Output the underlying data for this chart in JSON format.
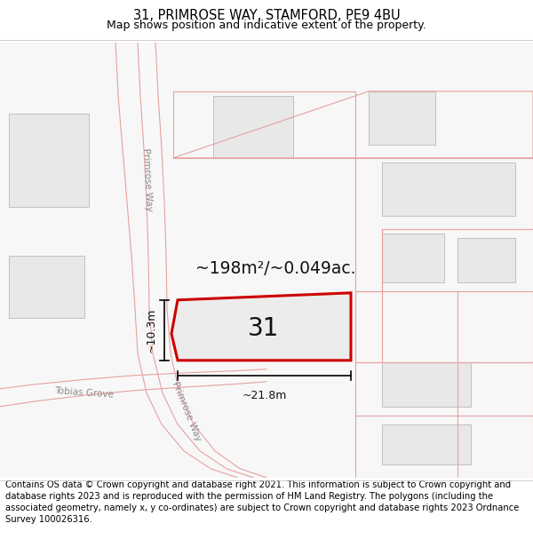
{
  "title": "31, PRIMROSE WAY, STAMFORD, PE9 4BU",
  "subtitle": "Map shows position and indicative extent of the property.",
  "footer": "Contains OS data © Crown copyright and database right 2021. This information is subject to Crown copyright and database rights 2023 and is reproduced with the permission of HM Land Registry. The polygons (including the associated geometry, namely x, y co-ordinates) are subject to Crown copyright and database rights 2023 Ordnance Survey 100026316.",
  "map_bg": "#ffffff",
  "road_line_color": "#e8a0a0",
  "road_fill_color": "#f0f0f0",
  "building_fill": "#e8e8e8",
  "building_edge": "#c0c0c0",
  "parcel_edge": "#e8a0a0",
  "highlight_fill": "#e8e8e8",
  "highlight_edge": "#cc0000",
  "highlight_lw": 2.2,
  "label_31": "31",
  "area_label": "~198m²/~0.049ac.",
  "dim_width": "~21.8m",
  "dim_height": "~10.3m",
  "title_fontsize": 10.5,
  "subtitle_fontsize": 9,
  "footer_fontsize": 7.2,
  "road_label_color": "#888888",
  "road_label_size": 7.5
}
